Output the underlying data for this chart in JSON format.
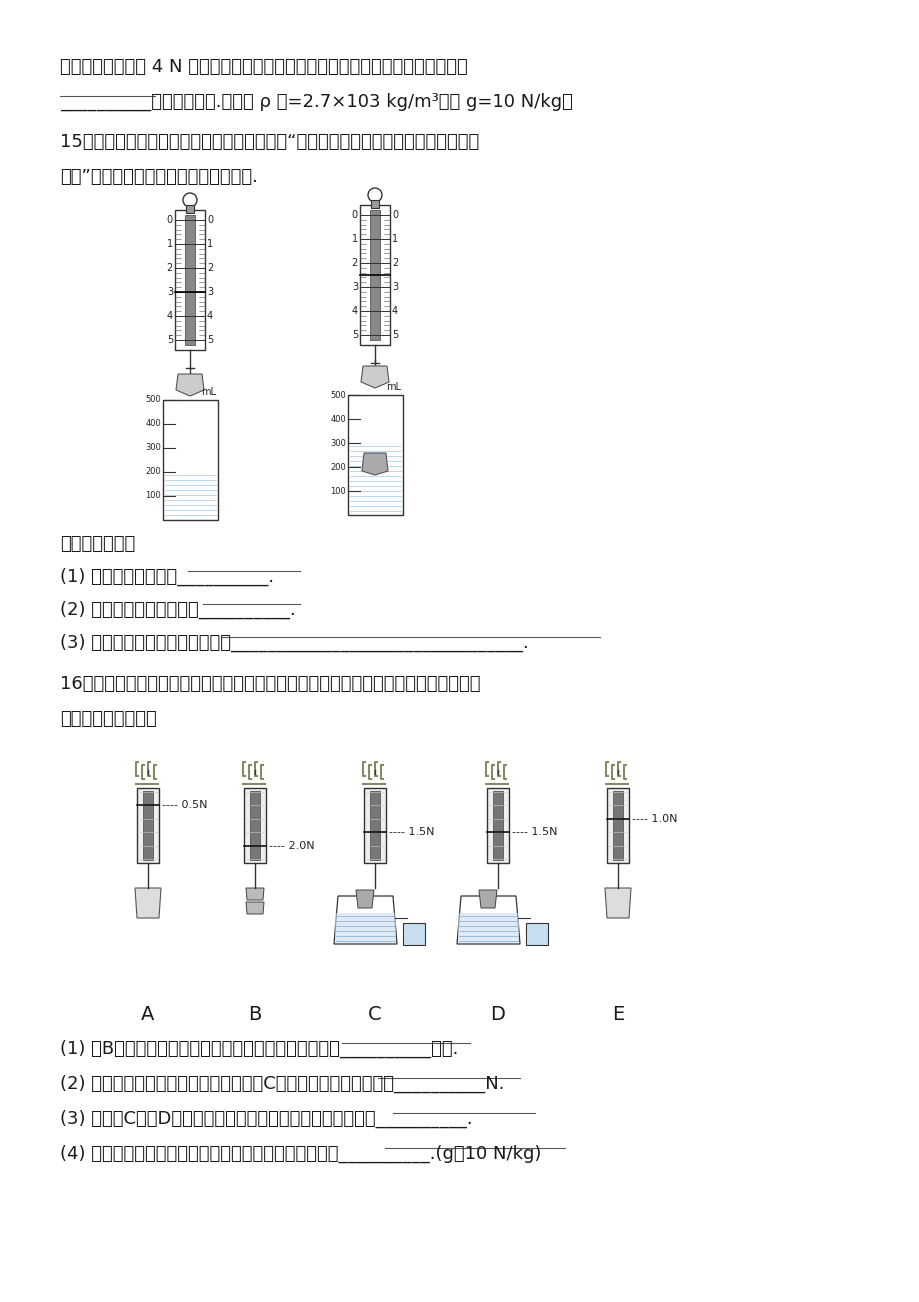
{
  "bg_color": "#ffffff",
  "text_color": "#1a1a1a",
  "line_color": "#333333",
  "line1": "用一根最多能承受 4 N 拉力的细绳系住铝球缓慢向上拉，当铝球露出水面的体积为",
  "line2": "__________时绳子会拉断.（已知 ρ 铝=2.7×103 kg/m³，取 g=10 N/kg）",
  "q15_title": "15．某同学用弹簧测力计、量筒、水和石块做“探究浮力与物体所排开的液体的重力的",
  "q15_line2": "关系”实验，实验中的几个情景如图所示.",
  "result_title": "据此可以得出：",
  "q15_q1": "(1) 石块所受的浮力：__________.",
  "q15_q2": "(2) 石块排开的水的重力：__________.",
  "q15_q3": "(3) 本探究实验可以得出的结论：________________________________.",
  "q16_title": "16．为了探究浸在液体中的物体所受的浮力跟它排开液体所受重力的关系，某同学进行",
  "q16_line2": "了如图所示的实验：",
  "labels_ABCDE": [
    "A",
    "B",
    "C",
    "D",
    "E"
  ],
  "force_labels": [
    "0.5N",
    "2.0N",
    "1.5N",
    "1.5N",
    "1.0N"
  ],
  "q16_q1": "(1) 图B中用细线将合金块挂在弹簧测力计下，测出它的__________大小.",
  "q16_q2": "(2) 将合金块浸入装满水的溢水杯中如图C所示，合金块所受浮力是__________N.",
  "q16_q3": "(3) 比较图C和图D可知，合金块在水中所受浮力与浸没的深度__________.",
  "q16_q4": "(4) 该同学做完实验总结出规律后，计算合金块的密度是__________.(g取10 N/kg)"
}
